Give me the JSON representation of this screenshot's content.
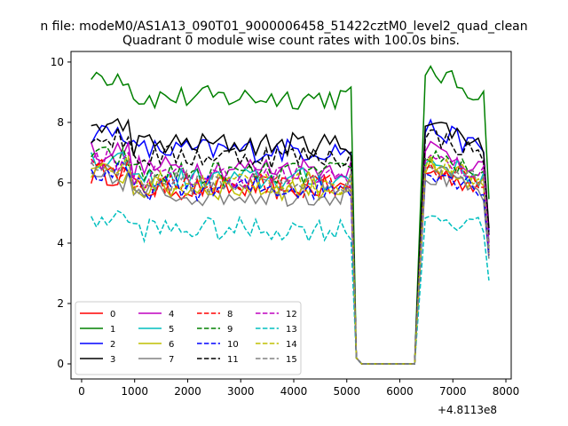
{
  "suptitle": "n file: modeM0/AS1A13_090T01_9000006458_51422cztM0_level2_quad_clean",
  "chart_data": {
    "type": "line",
    "title": "Quadrant 0 module wise count rates with 100.0s bins.",
    "xlabel": "",
    "ylabel": "",
    "offset_label": "+4.8113e8",
    "xlim": [
      -200,
      8100
    ],
    "ylim": [
      -0.5,
      10.35
    ],
    "xticks": [
      0,
      1000,
      2000,
      3000,
      4000,
      5000,
      6000,
      7000,
      8000
    ],
    "yticks": [
      0,
      2,
      4,
      6,
      8,
      10
    ],
    "grid": false,
    "legend_position": "lower-left",
    "legend_columns": 4,
    "series": [
      {
        "name": "0",
        "color": "#ff0000",
        "dash": "solid"
      },
      {
        "name": "1",
        "color": "#008000",
        "dash": "solid"
      },
      {
        "name": "2",
        "color": "#0000ff",
        "dash": "solid"
      },
      {
        "name": "3",
        "color": "#000000",
        "dash": "solid"
      },
      {
        "name": "4",
        "color": "#bf00bf",
        "dash": "solid"
      },
      {
        "name": "5",
        "color": "#00bfbf",
        "dash": "solid"
      },
      {
        "name": "6",
        "color": "#bfbf00",
        "dash": "solid"
      },
      {
        "name": "7",
        "color": "#808080",
        "dash": "solid"
      },
      {
        "name": "8",
        "color": "#ff0000",
        "dash": "dashed"
      },
      {
        "name": "9",
        "color": "#008000",
        "dash": "dashed"
      },
      {
        "name": "10",
        "color": "#0000ff",
        "dash": "dashed"
      },
      {
        "name": "11",
        "color": "#000000",
        "dash": "dashed"
      },
      {
        "name": "12",
        "color": "#bf00bf",
        "dash": "dashed"
      },
      {
        "name": "13",
        "color": "#00bfbf",
        "dash": "dashed"
      },
      {
        "name": "14",
        "color": "#bfbf00",
        "dash": "dashed"
      },
      {
        "name": "15",
        "color": "#808080",
        "dash": "dashed"
      }
    ]
  }
}
